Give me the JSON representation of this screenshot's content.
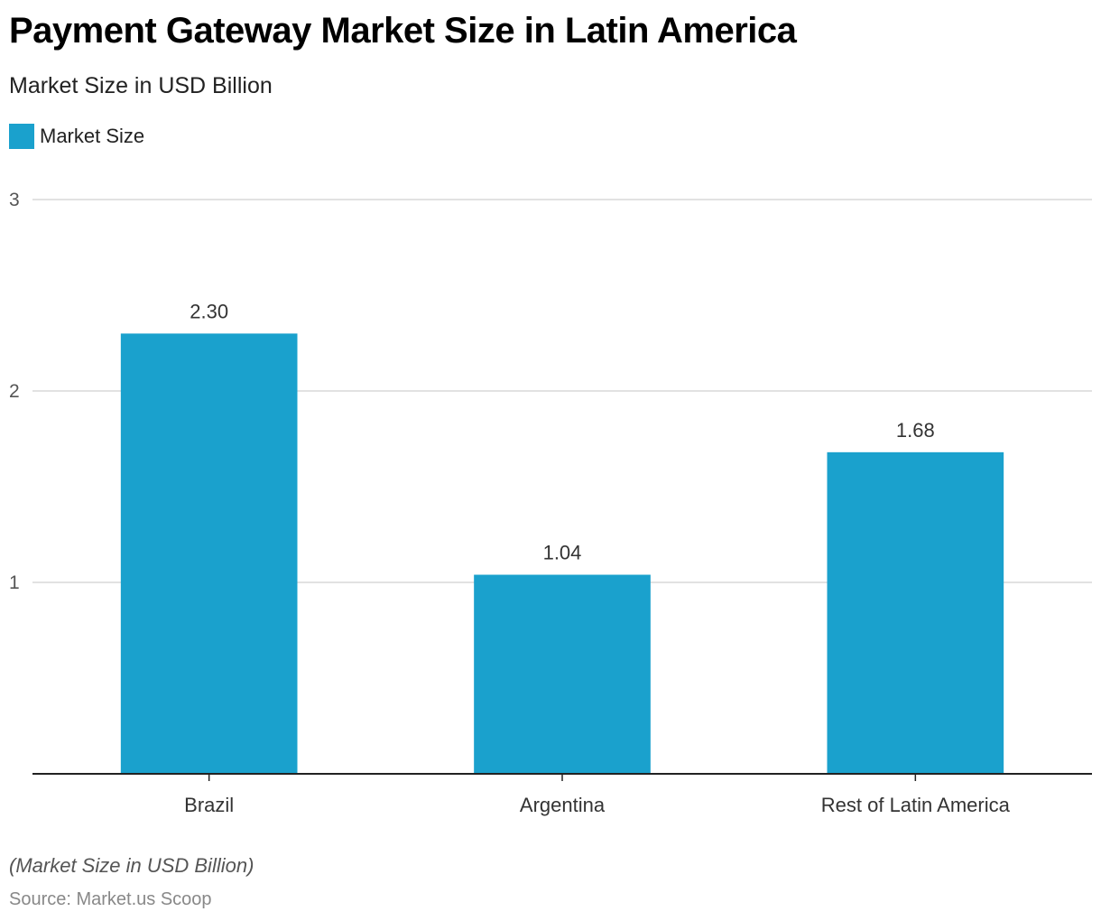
{
  "header": {
    "title": "Payment Gateway Market Size in Latin America",
    "subtitle": "Market Size in USD Billion"
  },
  "legend": {
    "items": [
      {
        "label": "Market Size",
        "color": "#1aa1cd"
      }
    ]
  },
  "footer": {
    "note": "(Market Size in USD Billion)",
    "source": "Source: Market.us Scoop"
  },
  "chart_data": {
    "type": "bar",
    "title": "Payment Gateway Market Size in Latin America",
    "subtitle": "Market Size in USD Billion",
    "xlabel": "",
    "ylabel": "",
    "categories": [
      "Brazil",
      "Argentina",
      "Rest of Latin America"
    ],
    "series": [
      {
        "name": "Market Size",
        "color": "#1aa1cd",
        "values": [
          2.3,
          1.04,
          1.68
        ],
        "labels": [
          "2.30",
          "1.04",
          "1.68"
        ]
      }
    ],
    "ylim": [
      0,
      3
    ],
    "yticks": [
      1,
      2,
      3
    ],
    "grid": true,
    "legend_position": "top-left",
    "colors": {
      "bar": "#1aa1cd",
      "grid": "#d9d9d9",
      "axis": "#222222"
    }
  }
}
